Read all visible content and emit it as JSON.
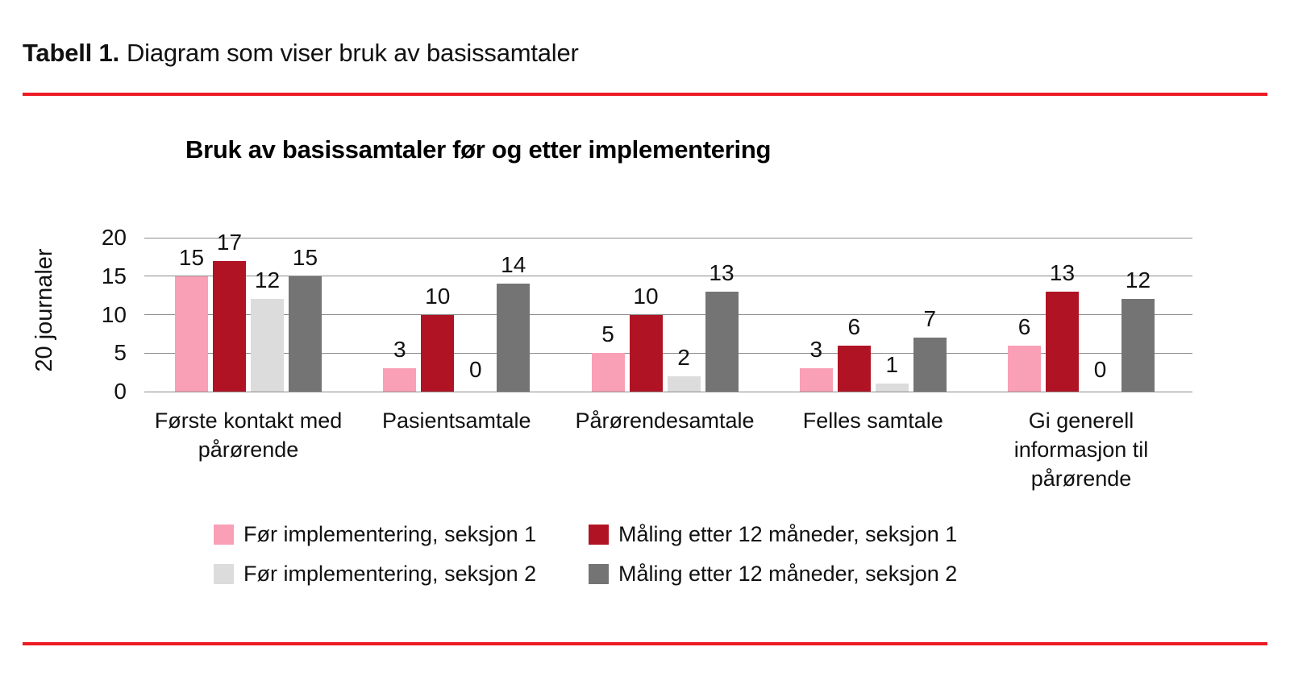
{
  "header": {
    "prefix": "Tabell 1.",
    "text": "Diagram som viser bruk av basissamtaler"
  },
  "rule_color": "#EC1B23",
  "chart_data": {
    "type": "bar",
    "title": "Bruk av basissamtaler før og etter implementering",
    "ylabel": "20 journaler",
    "xlabel": "",
    "ylim": [
      0,
      20
    ],
    "yticks": [
      0,
      5,
      10,
      15,
      20
    ],
    "grid": true,
    "legend_position": "bottom",
    "categories": [
      "Første kontakt med pårørende",
      "Pasientsamtale",
      "Pårørendesamtale",
      "Felles samtale",
      "Gi generell informasjon til pårørende"
    ],
    "category_lines": [
      [
        "Første kontakt med",
        "pårørende"
      ],
      [
        "Pasientsamtale"
      ],
      [
        "Pårørendesamtale"
      ],
      [
        "Felles samtale"
      ],
      [
        "Gi generell",
        "informasjon til",
        "pårørende"
      ]
    ],
    "series": [
      {
        "name": "Før implementering, seksjon 1",
        "color": "#F9A0B6",
        "values": [
          15,
          3,
          5,
          3,
          6
        ]
      },
      {
        "name": "Måling etter 12 måneder, seksjon 1",
        "color": "#B01324",
        "values": [
          17,
          10,
          10,
          6,
          13
        ]
      },
      {
        "name": "Før implementering, seksjon 2",
        "color": "#DCDCDC",
        "values": [
          12,
          0,
          2,
          1,
          0
        ]
      },
      {
        "name": "Måling etter 12 måneder, seksjon 2",
        "color": "#747474",
        "values": [
          15,
          14,
          13,
          7,
          12
        ]
      }
    ]
  }
}
